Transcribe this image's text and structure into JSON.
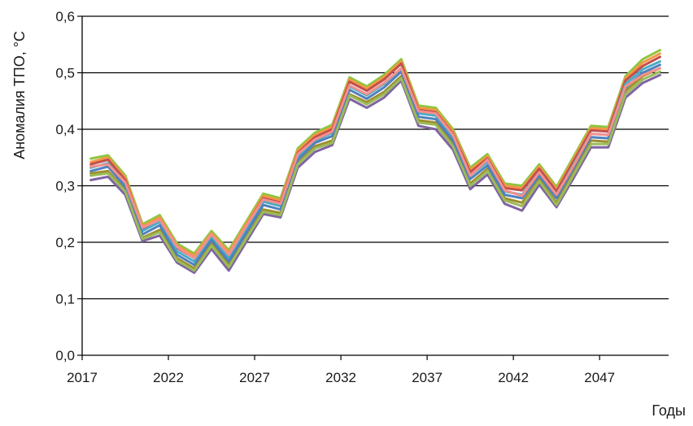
{
  "chart_data": {
    "type": "line",
    "title": "",
    "xlabel": "Годы",
    "ylabel": "Аномалия ТПО, °С",
    "ylim": [
      0,
      0.6
    ],
    "xlim": [
      2016.5,
      2050.5
    ],
    "yticks": [
      "0,0",
      "0,1",
      "0,2",
      "0,3",
      "0,4",
      "0,5",
      "0,6"
    ],
    "xticks": [
      "2017",
      "2022",
      "2027",
      "2032",
      "2037",
      "2042",
      "2047"
    ],
    "grid": "horizontal",
    "legend": "none",
    "x": [
      2017,
      2018,
      2019,
      2020,
      2021,
      2022,
      2023,
      2024,
      2025,
      2026,
      2027,
      2028,
      2029,
      2030,
      2031,
      2032,
      2033,
      2034,
      2035,
      2036,
      2037,
      2038,
      2039,
      2040,
      2041,
      2042,
      2043,
      2044,
      2045,
      2046,
      2047,
      2048,
      2049,
      2050
    ],
    "series": [
      {
        "color": "#8dc63f",
        "values": [
          0.348,
          0.354,
          0.318,
          0.232,
          0.248,
          0.198,
          0.18,
          0.22,
          0.186,
          0.236,
          0.286,
          0.278,
          0.366,
          0.394,
          0.408,
          0.492,
          0.476,
          0.496,
          0.524,
          0.442,
          0.438,
          0.4,
          0.332,
          0.356,
          0.304,
          0.3,
          0.338,
          0.298,
          0.352,
          0.406,
          0.404,
          0.494,
          0.524,
          0.54
        ]
      },
      {
        "color": "#f79646",
        "values": [
          0.342,
          0.35,
          0.314,
          0.228,
          0.244,
          0.194,
          0.176,
          0.216,
          0.182,
          0.232,
          0.282,
          0.274,
          0.362,
          0.39,
          0.404,
          0.488,
          0.472,
          0.492,
          0.52,
          0.438,
          0.434,
          0.396,
          0.328,
          0.352,
          0.3,
          0.296,
          0.334,
          0.294,
          0.348,
          0.402,
          0.4,
          0.49,
          0.518,
          0.534
        ]
      },
      {
        "color": "#c0504d",
        "values": [
          0.338,
          0.346,
          0.31,
          0.224,
          0.24,
          0.19,
          0.172,
          0.212,
          0.178,
          0.228,
          0.278,
          0.27,
          0.358,
          0.386,
          0.4,
          0.484,
          0.468,
          0.488,
          0.516,
          0.434,
          0.43,
          0.392,
          0.324,
          0.348,
          0.296,
          0.292,
          0.33,
          0.29,
          0.344,
          0.398,
          0.396,
          0.486,
          0.512,
          0.528
        ]
      },
      {
        "color": "#9e8e2e",
        "values": [
          0.322,
          0.326,
          0.292,
          0.208,
          0.222,
          0.172,
          0.154,
          0.198,
          0.16,
          0.21,
          0.258,
          0.252,
          0.34,
          0.37,
          0.38,
          0.462,
          0.448,
          0.466,
          0.494,
          0.416,
          0.412,
          0.374,
          0.304,
          0.33,
          0.278,
          0.27,
          0.312,
          0.27,
          0.326,
          0.38,
          0.378,
          0.468,
          0.494,
          0.508
        ]
      },
      {
        "color": "#4bacc6",
        "values": [
          0.332,
          0.34,
          0.304,
          0.22,
          0.236,
          0.184,
          0.166,
          0.208,
          0.172,
          0.222,
          0.272,
          0.264,
          0.352,
          0.38,
          0.394,
          0.476,
          0.46,
          0.48,
          0.508,
          0.428,
          0.424,
          0.386,
          0.318,
          0.342,
          0.29,
          0.284,
          0.324,
          0.284,
          0.338,
          0.392,
          0.39,
          0.48,
          0.506,
          0.52
        ]
      },
      {
        "color": "#4f81bd",
        "values": [
          0.326,
          0.334,
          0.298,
          0.214,
          0.23,
          0.178,
          0.16,
          0.204,
          0.166,
          0.216,
          0.266,
          0.258,
          0.346,
          0.376,
          0.388,
          0.47,
          0.454,
          0.474,
          0.502,
          0.422,
          0.418,
          0.38,
          0.312,
          0.336,
          0.284,
          0.278,
          0.318,
          0.278,
          0.332,
          0.386,
          0.384,
          0.474,
          0.5,
          0.514
        ]
      },
      {
        "color": "#8064a2",
        "values": [
          0.31,
          0.316,
          0.284,
          0.202,
          0.212,
          0.164,
          0.146,
          0.188,
          0.15,
          0.2,
          0.25,
          0.244,
          0.332,
          0.36,
          0.372,
          0.454,
          0.438,
          0.456,
          0.486,
          0.406,
          0.4,
          0.364,
          0.294,
          0.32,
          0.268,
          0.256,
          0.302,
          0.262,
          0.314,
          0.368,
          0.368,
          0.456,
          0.482,
          0.496
        ]
      },
      {
        "color": "#9bbb59",
        "values": [
          0.318,
          0.322,
          0.29,
          0.206,
          0.218,
          0.168,
          0.15,
          0.194,
          0.156,
          0.206,
          0.254,
          0.248,
          0.338,
          0.366,
          0.376,
          0.46,
          0.444,
          0.462,
          0.49,
          0.412,
          0.408,
          0.37,
          0.3,
          0.326,
          0.274,
          0.264,
          0.308,
          0.266,
          0.32,
          0.374,
          0.374,
          0.462,
          0.488,
          0.502
        ]
      },
      {
        "color": "#f4908c",
        "values": [
          0.334,
          0.338,
          0.306,
          0.226,
          0.24,
          0.192,
          0.172,
          0.214,
          0.178,
          0.228,
          0.276,
          0.268,
          0.356,
          0.382,
          0.396,
          0.478,
          0.462,
          0.482,
          0.508,
          0.432,
          0.428,
          0.39,
          0.318,
          0.346,
          0.292,
          0.282,
          0.324,
          0.284,
          0.336,
          0.392,
          0.39,
          0.476,
          0.496,
          0.508
        ]
      }
    ]
  }
}
